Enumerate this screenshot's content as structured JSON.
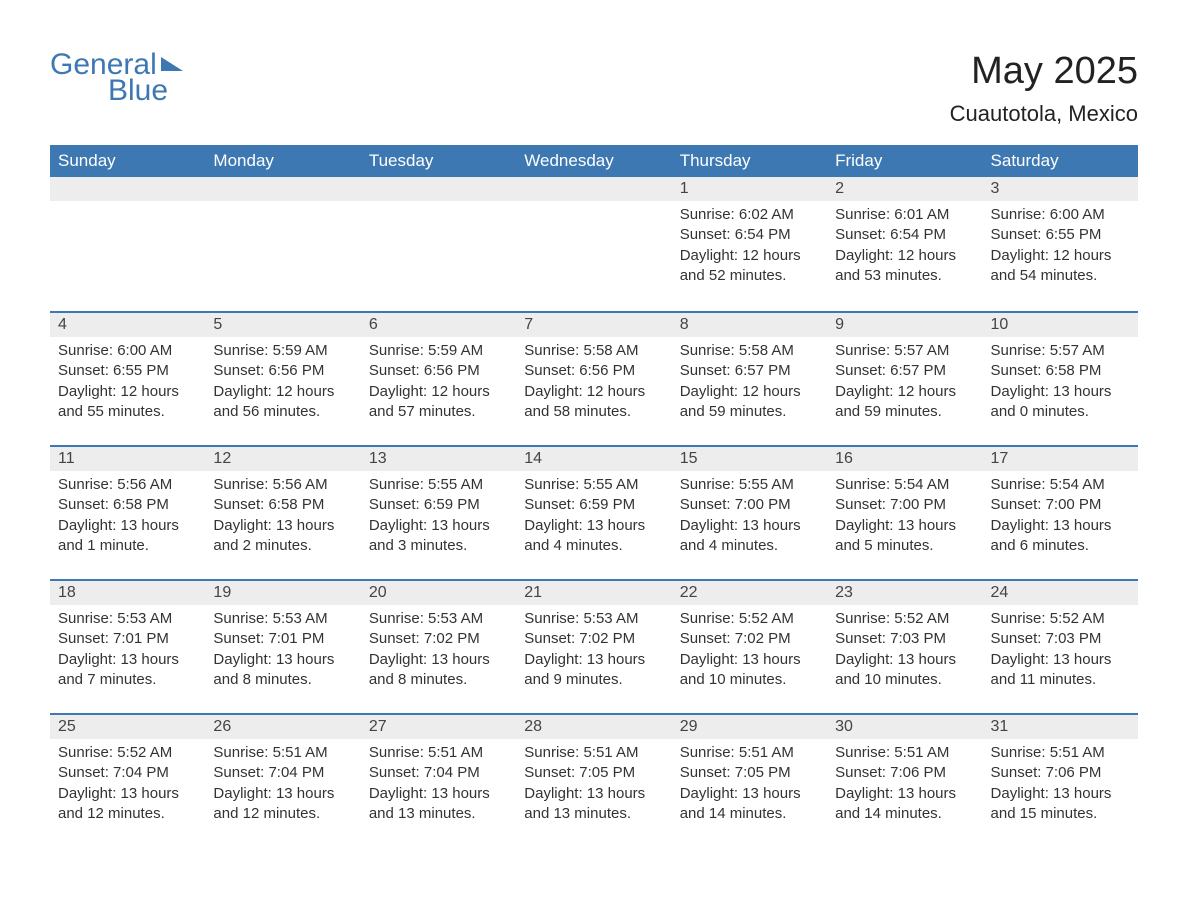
{
  "logo": {
    "word1": "General",
    "word2": "Blue"
  },
  "header": {
    "month_title": "May 2025",
    "location": "Cuautotola, Mexico"
  },
  "colors": {
    "header_bg": "#3d78b3",
    "header_text": "#ffffff",
    "daynum_bg": "#ededed",
    "row_border": "#3d78b3",
    "body_text": "#333333",
    "page_bg": "#ffffff"
  },
  "day_names": [
    "Sunday",
    "Monday",
    "Tuesday",
    "Wednesday",
    "Thursday",
    "Friday",
    "Saturday"
  ],
  "weeks": [
    [
      null,
      null,
      null,
      null,
      {
        "n": "1",
        "sunrise": "Sunrise: 6:02 AM",
        "sunset": "Sunset: 6:54 PM",
        "daylight": "Daylight: 12 hours and 52 minutes."
      },
      {
        "n": "2",
        "sunrise": "Sunrise: 6:01 AM",
        "sunset": "Sunset: 6:54 PM",
        "daylight": "Daylight: 12 hours and 53 minutes."
      },
      {
        "n": "3",
        "sunrise": "Sunrise: 6:00 AM",
        "sunset": "Sunset: 6:55 PM",
        "daylight": "Daylight: 12 hours and 54 minutes."
      }
    ],
    [
      {
        "n": "4",
        "sunrise": "Sunrise: 6:00 AM",
        "sunset": "Sunset: 6:55 PM",
        "daylight": "Daylight: 12 hours and 55 minutes."
      },
      {
        "n": "5",
        "sunrise": "Sunrise: 5:59 AM",
        "sunset": "Sunset: 6:56 PM",
        "daylight": "Daylight: 12 hours and 56 minutes."
      },
      {
        "n": "6",
        "sunrise": "Sunrise: 5:59 AM",
        "sunset": "Sunset: 6:56 PM",
        "daylight": "Daylight: 12 hours and 57 minutes."
      },
      {
        "n": "7",
        "sunrise": "Sunrise: 5:58 AM",
        "sunset": "Sunset: 6:56 PM",
        "daylight": "Daylight: 12 hours and 58 minutes."
      },
      {
        "n": "8",
        "sunrise": "Sunrise: 5:58 AM",
        "sunset": "Sunset: 6:57 PM",
        "daylight": "Daylight: 12 hours and 59 minutes."
      },
      {
        "n": "9",
        "sunrise": "Sunrise: 5:57 AM",
        "sunset": "Sunset: 6:57 PM",
        "daylight": "Daylight: 12 hours and 59 minutes."
      },
      {
        "n": "10",
        "sunrise": "Sunrise: 5:57 AM",
        "sunset": "Sunset: 6:58 PM",
        "daylight": "Daylight: 13 hours and 0 minutes."
      }
    ],
    [
      {
        "n": "11",
        "sunrise": "Sunrise: 5:56 AM",
        "sunset": "Sunset: 6:58 PM",
        "daylight": "Daylight: 13 hours and 1 minute."
      },
      {
        "n": "12",
        "sunrise": "Sunrise: 5:56 AM",
        "sunset": "Sunset: 6:58 PM",
        "daylight": "Daylight: 13 hours and 2 minutes."
      },
      {
        "n": "13",
        "sunrise": "Sunrise: 5:55 AM",
        "sunset": "Sunset: 6:59 PM",
        "daylight": "Daylight: 13 hours and 3 minutes."
      },
      {
        "n": "14",
        "sunrise": "Sunrise: 5:55 AM",
        "sunset": "Sunset: 6:59 PM",
        "daylight": "Daylight: 13 hours and 4 minutes."
      },
      {
        "n": "15",
        "sunrise": "Sunrise: 5:55 AM",
        "sunset": "Sunset: 7:00 PM",
        "daylight": "Daylight: 13 hours and 4 minutes."
      },
      {
        "n": "16",
        "sunrise": "Sunrise: 5:54 AM",
        "sunset": "Sunset: 7:00 PM",
        "daylight": "Daylight: 13 hours and 5 minutes."
      },
      {
        "n": "17",
        "sunrise": "Sunrise: 5:54 AM",
        "sunset": "Sunset: 7:00 PM",
        "daylight": "Daylight: 13 hours and 6 minutes."
      }
    ],
    [
      {
        "n": "18",
        "sunrise": "Sunrise: 5:53 AM",
        "sunset": "Sunset: 7:01 PM",
        "daylight": "Daylight: 13 hours and 7 minutes."
      },
      {
        "n": "19",
        "sunrise": "Sunrise: 5:53 AM",
        "sunset": "Sunset: 7:01 PM",
        "daylight": "Daylight: 13 hours and 8 minutes."
      },
      {
        "n": "20",
        "sunrise": "Sunrise: 5:53 AM",
        "sunset": "Sunset: 7:02 PM",
        "daylight": "Daylight: 13 hours and 8 minutes."
      },
      {
        "n": "21",
        "sunrise": "Sunrise: 5:53 AM",
        "sunset": "Sunset: 7:02 PM",
        "daylight": "Daylight: 13 hours and 9 minutes."
      },
      {
        "n": "22",
        "sunrise": "Sunrise: 5:52 AM",
        "sunset": "Sunset: 7:02 PM",
        "daylight": "Daylight: 13 hours and 10 minutes."
      },
      {
        "n": "23",
        "sunrise": "Sunrise: 5:52 AM",
        "sunset": "Sunset: 7:03 PM",
        "daylight": "Daylight: 13 hours and 10 minutes."
      },
      {
        "n": "24",
        "sunrise": "Sunrise: 5:52 AM",
        "sunset": "Sunset: 7:03 PM",
        "daylight": "Daylight: 13 hours and 11 minutes."
      }
    ],
    [
      {
        "n": "25",
        "sunrise": "Sunrise: 5:52 AM",
        "sunset": "Sunset: 7:04 PM",
        "daylight": "Daylight: 13 hours and 12 minutes."
      },
      {
        "n": "26",
        "sunrise": "Sunrise: 5:51 AM",
        "sunset": "Sunset: 7:04 PM",
        "daylight": "Daylight: 13 hours and 12 minutes."
      },
      {
        "n": "27",
        "sunrise": "Sunrise: 5:51 AM",
        "sunset": "Sunset: 7:04 PM",
        "daylight": "Daylight: 13 hours and 13 minutes."
      },
      {
        "n": "28",
        "sunrise": "Sunrise: 5:51 AM",
        "sunset": "Sunset: 7:05 PM",
        "daylight": "Daylight: 13 hours and 13 minutes."
      },
      {
        "n": "29",
        "sunrise": "Sunrise: 5:51 AM",
        "sunset": "Sunset: 7:05 PM",
        "daylight": "Daylight: 13 hours and 14 minutes."
      },
      {
        "n": "30",
        "sunrise": "Sunrise: 5:51 AM",
        "sunset": "Sunset: 7:06 PM",
        "daylight": "Daylight: 13 hours and 14 minutes."
      },
      {
        "n": "31",
        "sunrise": "Sunrise: 5:51 AM",
        "sunset": "Sunset: 7:06 PM",
        "daylight": "Daylight: 13 hours and 15 minutes."
      }
    ]
  ]
}
